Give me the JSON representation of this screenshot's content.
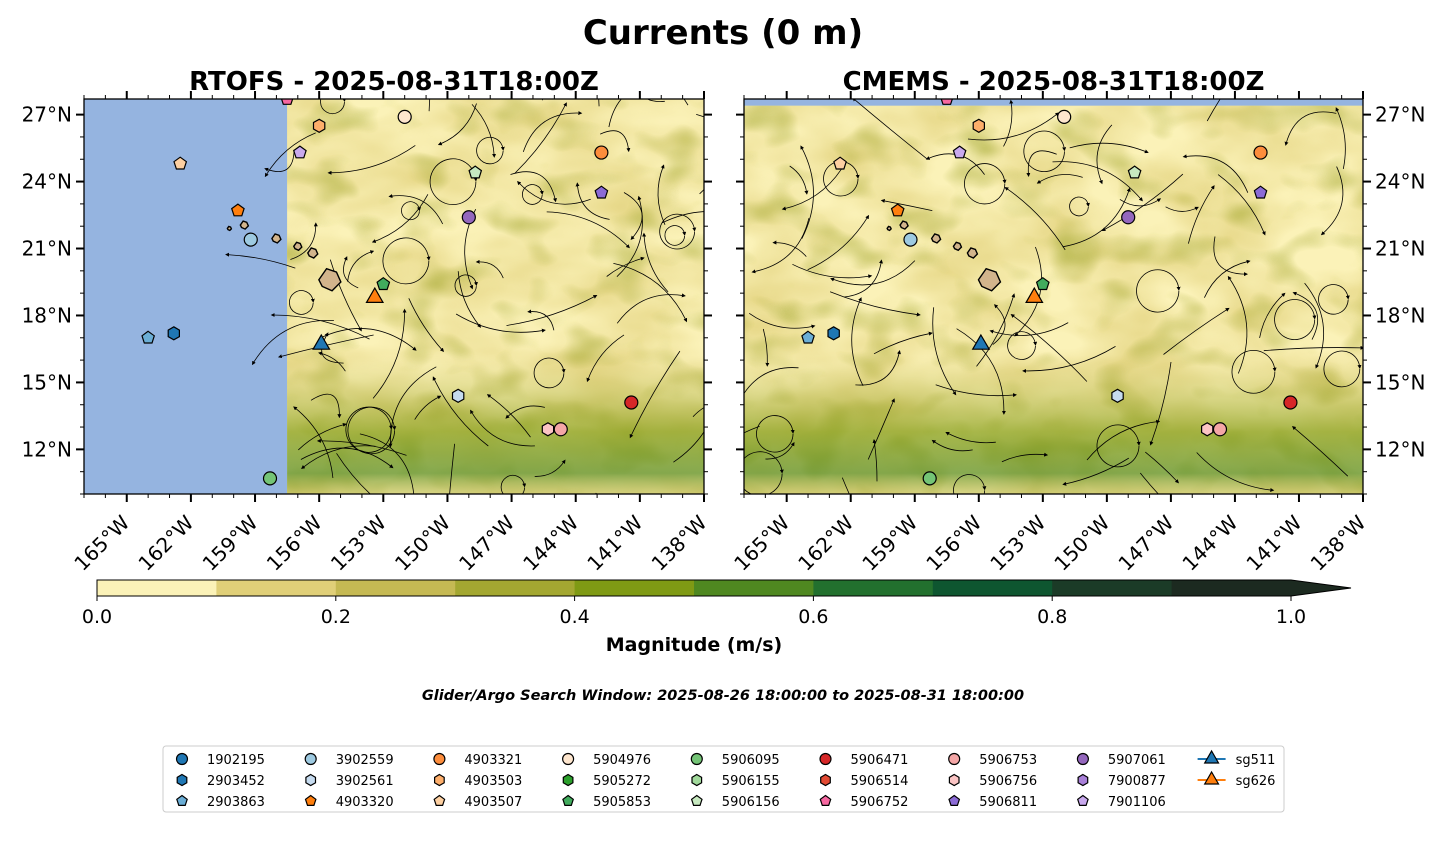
{
  "chart_data": {
    "type": "heatmap",
    "title": "Currents (0 m)",
    "panels": [
      {
        "title": "RTOFS - 2025-08-31T18:00Z",
        "model": "RTOFS",
        "data_lon_start": -157.5,
        "has_coast_mask_top": false
      },
      {
        "title": "CMEMS - 2025-08-31T18:00Z",
        "model": "CMEMS",
        "data_lon_start": -167.0,
        "has_coast_mask_top": true
      }
    ],
    "lon_range": [
      -167.0,
      -138.0
    ],
    "lat_range": [
      10.0,
      27.7
    ],
    "lon_ticks": [
      -165,
      -162,
      -159,
      -156,
      -153,
      -150,
      -147,
      -144,
      -141,
      -138
    ],
    "lon_tick_labels": [
      "165°W",
      "162°W",
      "159°W",
      "156°W",
      "153°W",
      "150°W",
      "147°W",
      "144°W",
      "141°W",
      "138°W"
    ],
    "lat_ticks": [
      12,
      15,
      18,
      21,
      24,
      27
    ],
    "lat_tick_labels": [
      "12°N",
      "15°N",
      "18°N",
      "21°N",
      "24°N",
      "27°N"
    ],
    "colorbar": {
      "label": "Magnitude (m/s)",
      "levels": [
        0.0,
        0.1,
        0.2,
        0.3,
        0.4,
        0.5,
        0.6,
        0.7,
        0.8,
        0.9,
        1.0
      ],
      "tick_values": [
        0.0,
        0.2,
        0.4,
        0.6,
        0.8,
        1.0
      ],
      "tick_labels": [
        "0.0",
        "0.2",
        "0.4",
        "0.6",
        "0.8",
        "1.0"
      ],
      "colors": [
        "#fbf2b8",
        "#e0cf78",
        "#c5b953",
        "#a3a731",
        "#7f9a14",
        "#4f8820",
        "#22702e",
        "#0e5630",
        "#1b3b27",
        "#1c2a20"
      ],
      "extend": "max"
    },
    "subtitle": "Glider/Argo Search Window: 2025-08-26 18:00:00 to 2025-08-31 18:00:00",
    "land_color": "#d2b48c",
    "mask_color": "#95b4e0",
    "floats": [
      {
        "id": "1902195",
        "marker": "circle",
        "color": "#1f77b4",
        "lon": null,
        "lat": null
      },
      {
        "id": "2903452",
        "marker": "hexagon",
        "color": "#1f77b4",
        "lon": -162.8,
        "lat": 17.2
      },
      {
        "id": "2903863",
        "marker": "pentagon",
        "color": "#6baed6",
        "lon": -164.0,
        "lat": 17.0
      },
      {
        "id": "3902559",
        "marker": "circle",
        "color": "#9ecae1",
        "lon": -159.2,
        "lat": 21.4
      },
      {
        "id": "3902561",
        "marker": "hexagon",
        "color": "#c6dbef",
        "lon": -149.5,
        "lat": 14.4
      },
      {
        "id": "4903320",
        "marker": "pentagon",
        "color": "#ff7f0e",
        "lon": -159.8,
        "lat": 22.7
      },
      {
        "id": "4903321",
        "marker": "circle",
        "color": "#fd8d3c",
        "lon": -142.8,
        "lat": 25.3
      },
      {
        "id": "4903503",
        "marker": "hexagon",
        "color": "#fdae6b",
        "lon": -156.0,
        "lat": 26.5
      },
      {
        "id": "4903507",
        "marker": "pentagon",
        "color": "#fdd0a2",
        "lon": -162.5,
        "lat": 24.8
      },
      {
        "id": "5904976",
        "marker": "circle",
        "color": "#fee6ce",
        "lon": -152.0,
        "lat": 26.9
      },
      {
        "id": "5905272",
        "marker": "hexagon",
        "color": "#2ca02c",
        "lon": null,
        "lat": null
      },
      {
        "id": "5905853",
        "marker": "pentagon",
        "color": "#41ab5d",
        "lon": -153.0,
        "lat": 19.4
      },
      {
        "id": "5906095",
        "marker": "circle",
        "color": "#74c476",
        "lon": -158.3,
        "lat": 10.7
      },
      {
        "id": "5906155",
        "marker": "hexagon",
        "color": "#a1d99b",
        "lon": null,
        "lat": null
      },
      {
        "id": "5906156",
        "marker": "pentagon",
        "color": "#c7e9c0",
        "lon": -148.7,
        "lat": 24.4
      },
      {
        "id": "5906471",
        "marker": "circle",
        "color": "#d62728",
        "lon": -141.4,
        "lat": 14.1
      },
      {
        "id": "5906514",
        "marker": "hexagon",
        "color": "#e34a33",
        "lon": null,
        "lat": null
      },
      {
        "id": "5906752",
        "marker": "pentagon",
        "color": "#f768a1",
        "lon": -157.5,
        "lat": 27.7
      },
      {
        "id": "5906753",
        "marker": "circle",
        "color": "#f4a6a6",
        "lon": -144.7,
        "lat": 12.9
      },
      {
        "id": "5906756",
        "marker": "hexagon",
        "color": "#fbc4c4",
        "lon": -145.3,
        "lat": 12.9
      },
      {
        "id": "5906811",
        "marker": "pentagon",
        "color": "#8c6bd6",
        "lon": -142.8,
        "lat": 23.5
      },
      {
        "id": "5907061",
        "marker": "circle",
        "color": "#9467bd",
        "lon": -149.0,
        "lat": 22.4
      },
      {
        "id": "7900877",
        "marker": "hexagon",
        "color": "#a87fd8",
        "lon": null,
        "lat": null
      },
      {
        "id": "7901106",
        "marker": "pentagon",
        "color": "#c9a9ee",
        "lon": -156.9,
        "lat": 25.3
      }
    ],
    "gliders": [
      {
        "id": "sg511",
        "marker": "triangle",
        "color": "#1f77b4",
        "lon": -155.9,
        "lat": 16.7
      },
      {
        "id": "sg626",
        "marker": "triangle",
        "color": "#ff7f0e",
        "lon": -153.4,
        "lat": 18.8
      }
    ]
  }
}
